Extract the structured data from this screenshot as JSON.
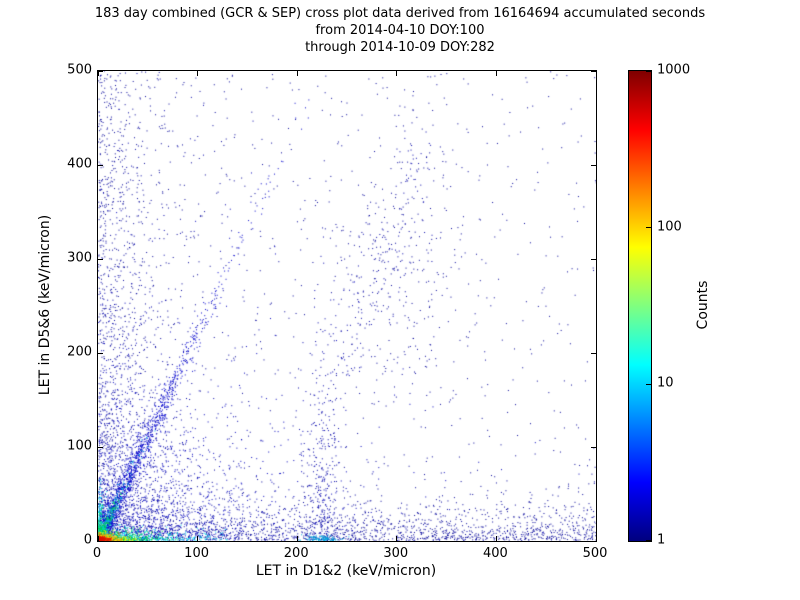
{
  "chart_data": {
    "type": "scatter",
    "title_line1": "183 day combined (GCR & SEP) cross plot data derived from 16164694 accumulated seconds",
    "title_line2": "from 2014-04-10 DOY:100",
    "title_line3": "through 2014-10-09 DOY:282",
    "xlabel": "LET in D1&2 (keV/micron)",
    "ylabel": "LET in D5&6 (keV/micron)",
    "xlim": [
      0,
      500
    ],
    "ylim": [
      0,
      500
    ],
    "x_ticks": [
      0,
      100,
      200,
      300,
      400,
      500
    ],
    "y_ticks": [
      0,
      100,
      200,
      300,
      400,
      500
    ],
    "grid": false,
    "legend": false,
    "background_color": "#ffffff",
    "colorbar": {
      "label": "Counts",
      "scale": "log",
      "ticks": [
        1,
        10,
        100,
        1000
      ],
      "colormap": "jet",
      "stops": [
        {
          "pos": 0.0,
          "color": "#00007f"
        },
        {
          "pos": 0.125,
          "color": "#0000ff"
        },
        {
          "pos": 0.375,
          "color": "#00ffff"
        },
        {
          "pos": 0.625,
          "color": "#ffff00"
        },
        {
          "pos": 0.875,
          "color": "#ff0000"
        },
        {
          "pos": 1.0,
          "color": "#7f0000"
        }
      ]
    },
    "density_features": [
      {
        "name": "background-sparse",
        "kind": "xy",
        "count": 700,
        "size": 1,
        "color": "#000099",
        "x": {
          "dist": "uniform",
          "min": 0,
          "max": 500
        },
        "y": {
          "dist": "uniform",
          "min": 0,
          "max": 500
        }
      },
      {
        "name": "left-column-full",
        "kind": "xy",
        "count": 900,
        "size": 1,
        "color": "#000099",
        "x": {
          "dist": "exp",
          "scale": 30,
          "max": 500
        },
        "y": {
          "dist": "uniform",
          "min": 0,
          "max": 500
        }
      },
      {
        "name": "left-column-low",
        "kind": "xy",
        "count": 700,
        "size": 1,
        "color": "#0000aa",
        "x": {
          "dist": "exp",
          "scale": 40,
          "max": 500
        },
        "y": {
          "dist": "exp",
          "scale": 150,
          "max": 500
        }
      },
      {
        "name": "bottom-band",
        "kind": "xy",
        "count": 1600,
        "size": 1,
        "color": "#000099",
        "x": {
          "dist": "uniform",
          "min": 0,
          "max": 500
        },
        "y": {
          "dist": "exp",
          "scale": 16,
          "max": 500
        }
      },
      {
        "name": "lower-left-wedge",
        "kind": "xy",
        "count": 1700,
        "size": 1,
        "color": "#0000bb",
        "x": {
          "dist": "exp",
          "scale": 70,
          "max": 500
        },
        "y": {
          "dist": "exp",
          "scale": 55,
          "max": 500
        }
      },
      {
        "name": "diagonal-streak",
        "kind": "streak",
        "count": 1300,
        "size": 1,
        "color": "#0000cc",
        "t": {
          "dist": "exp",
          "scale": 90,
          "max": 470
        },
        "dir": [
          0.45,
          1
        ],
        "jitter": 4
      },
      {
        "name": "vertical-cluster-225",
        "kind": "xy",
        "count": 300,
        "size": 1,
        "color": "#0000aa",
        "x": {
          "dist": "gauss",
          "mean": 225,
          "sd": 9
        },
        "y": {
          "dist": "exp",
          "scale": 80,
          "max": 340
        }
      },
      {
        "name": "upper-mid-blob",
        "kind": "xy",
        "count": 260,
        "size": 1,
        "color": "#000099",
        "x": {
          "dist": "gauss",
          "mean": 300,
          "sd": 32
        },
        "y": {
          "dist": "gauss",
          "mean": 300,
          "sd": 75
        }
      },
      {
        "name": "mid-diagonal-segment",
        "kind": "segment",
        "count": 180,
        "size": 1,
        "color": "#0000aa",
        "p1": [
          215,
          110
        ],
        "p2": [
          330,
          420
        ],
        "jitter": [
          14,
          30
        ]
      },
      {
        "name": "diagonal-streak-cyan",
        "kind": "streak",
        "count": 320,
        "size": 1,
        "color": "#00b8e0",
        "t": {
          "dist": "exp",
          "scale": 26,
          "max": 120
        },
        "dir": [
          0.45,
          1
        ],
        "jitter": 2.5
      },
      {
        "name": "diagonal-streak-green",
        "kind": "streak",
        "count": 160,
        "size": 1,
        "color": "#00cc44",
        "t": {
          "dist": "exp",
          "scale": 13,
          "max": 55
        },
        "dir": [
          0.45,
          1
        ],
        "jitter": 2
      },
      {
        "name": "bottom-cyan",
        "kind": "xy",
        "count": 500,
        "size": 1,
        "color": "#00dff0",
        "x": {
          "dist": "exp",
          "scale": 40,
          "max": 130
        },
        "y": {
          "dist": "exp",
          "scale": 4,
          "max": 18
        }
      },
      {
        "name": "bottom-220-cyan",
        "kind": "xy",
        "count": 110,
        "size": 1,
        "color": "#00aadd",
        "x": {
          "dist": "gauss",
          "mean": 224,
          "sd": 9
        },
        "y": {
          "dist": "exp",
          "scale": 2.5,
          "max": 8
        }
      },
      {
        "name": "left-cyan",
        "kind": "xy",
        "count": 200,
        "size": 1,
        "color": "#00dff0",
        "x": {
          "dist": "exp",
          "scale": 3,
          "max": 12
        },
        "y": {
          "dist": "exp",
          "scale": 22,
          "max": 70
        }
      },
      {
        "name": "bottom-green",
        "kind": "xy",
        "count": 340,
        "size": 1,
        "color": "#00d040",
        "x": {
          "dist": "exp",
          "scale": 22,
          "max": 80
        },
        "y": {
          "dist": "exp",
          "scale": 3.5,
          "max": 14
        }
      },
      {
        "name": "left-green",
        "kind": "xy",
        "count": 120,
        "size": 1,
        "color": "#00d040",
        "x": {
          "dist": "exp",
          "scale": 2.5,
          "max": 9
        },
        "y": {
          "dist": "exp",
          "scale": 12,
          "max": 40
        }
      },
      {
        "name": "bottom-yellow",
        "kind": "xy",
        "count": 240,
        "size": 1,
        "color": "#f2f200",
        "x": {
          "dist": "exp",
          "scale": 13,
          "max": 42
        },
        "y": {
          "dist": "exp",
          "scale": 3,
          "max": 11
        }
      },
      {
        "name": "bottom-orange",
        "kind": "xy",
        "count": 170,
        "size": 1,
        "color": "#ff9500",
        "x": {
          "dist": "exp",
          "scale": 8,
          "max": 26
        },
        "y": {
          "dist": "exp",
          "scale": 2.5,
          "max": 9
        }
      },
      {
        "name": "bottom-red",
        "kind": "xy",
        "count": 140,
        "size": 1,
        "color": "#dd1100",
        "x": {
          "dist": "exp",
          "scale": 5,
          "max": 15
        },
        "y": {
          "dist": "exp",
          "scale": 2,
          "max": 7
        }
      }
    ]
  }
}
